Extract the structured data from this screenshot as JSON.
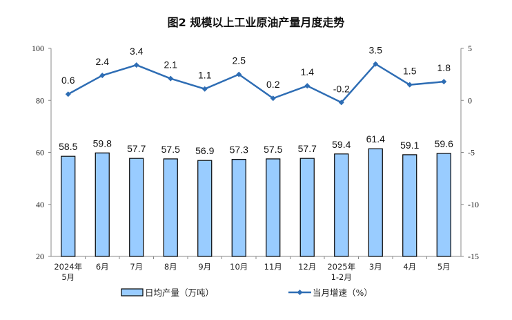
{
  "chart_data": {
    "type": "bar+line",
    "title": "图2  规模以上工业原油产量月度走势",
    "categories": [
      [
        "2024年",
        "5月"
      ],
      [
        "6月"
      ],
      [
        "7月"
      ],
      [
        "8月"
      ],
      [
        "9月"
      ],
      [
        "10月"
      ],
      [
        "11月"
      ],
      [
        "12月"
      ],
      [
        "2025年",
        "1-2月"
      ],
      [
        "3月"
      ],
      [
        "4月"
      ],
      [
        "5月"
      ]
    ],
    "series": [
      {
        "name": "日均产量（万吨）",
        "type": "bar",
        "axis": "left",
        "values": [
          58.5,
          59.8,
          57.7,
          57.5,
          56.9,
          57.3,
          57.5,
          57.7,
          59.4,
          61.4,
          59.1,
          59.6
        ],
        "color": "#99CCFF"
      },
      {
        "name": "当月增速（%）",
        "type": "line",
        "axis": "right",
        "values": [
          0.6,
          2.4,
          3.4,
          2.1,
          1.1,
          2.5,
          0.2,
          1.4,
          -0.2,
          3.5,
          1.5,
          1.8
        ],
        "color": "#2E6DB4"
      }
    ],
    "left_axis": {
      "range": [
        20,
        100
      ],
      "ticks": [
        20,
        40,
        60,
        80,
        100
      ]
    },
    "right_axis": {
      "range": [
        -15,
        5
      ],
      "ticks": [
        -15,
        -10,
        -5,
        0,
        5
      ]
    },
    "grid": false,
    "legend": "bottom"
  }
}
